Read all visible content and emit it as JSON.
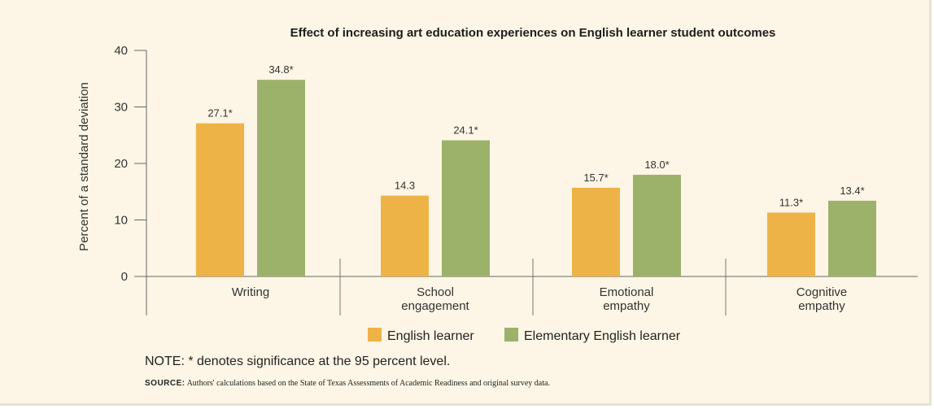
{
  "chart_data": {
    "type": "bar",
    "title": "Effect of increasing art education experiences on English learner student outcomes",
    "ylabel": "Percent of a standard deviation",
    "xlabel": "",
    "ylim": [
      0,
      40
    ],
    "yticks": [
      "0",
      "10",
      "20",
      "30",
      "40"
    ],
    "categories": [
      [
        "Writing"
      ],
      [
        "School",
        "engagement"
      ],
      [
        "Emotional",
        "empathy"
      ],
      [
        "Cognitive",
        "empathy"
      ]
    ],
    "series": [
      {
        "name": "English learner",
        "color": "#eeb347",
        "values": [
          27.1,
          14.3,
          15.7,
          11.3
        ],
        "labels": [
          "27.1*",
          "14.3",
          "15.7*",
          "11.3*"
        ]
      },
      {
        "name": "Elementary English learner",
        "color": "#9cb26b",
        "values": [
          34.8,
          24.1,
          18.0,
          13.4
        ],
        "labels": [
          "34.8*",
          "24.1*",
          "18.0*",
          "13.4*"
        ]
      }
    ],
    "legend_position": "bottom-center",
    "grid": false
  },
  "note": "NOTE: * denotes significance at the 95 percent level.",
  "source": {
    "label": "SOURCE:",
    "text": "Authors' calculations based on the State of Texas Assessments of Academic Readiness and original survey data."
  }
}
